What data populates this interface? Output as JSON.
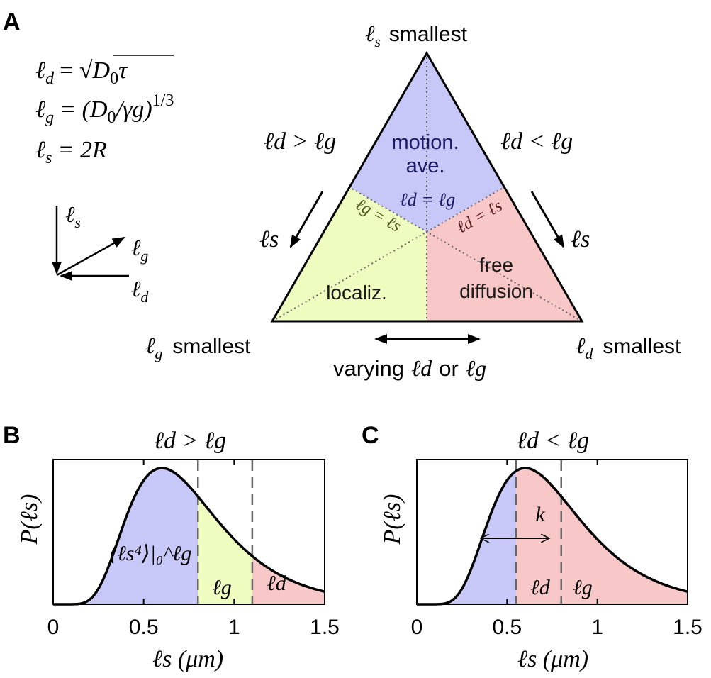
{
  "panelA": {
    "label": "A",
    "definitions": {
      "ld_lhs": "ℓ",
      "ld_sub": "d",
      "ld_rhs_prefix": "= ",
      "ld_rhs_D": "D",
      "ld_rhs_0": "0",
      "ld_rhs_tau": "τ",
      "lg_lhs": "ℓ",
      "lg_sub": "g",
      "lg_rhs": "= (D",
      "lg_rhs_0": "0",
      "lg_rhs_tail": "/γg)",
      "lg_exp": "1/3",
      "ls_lhs": "ℓ",
      "ls_sub": "s",
      "ls_rhs": "= 2R"
    },
    "axes": {
      "s": "s",
      "g": "g",
      "d": "d",
      "ell": "ℓ"
    },
    "triangle": {
      "top_label_sym": "ℓ",
      "top_label_sub": "s",
      "top_label_word": "smallest",
      "left_label_sym": "ℓ",
      "left_label_sub": "g",
      "left_label_word": "smallest",
      "right_label_sym": "ℓ",
      "right_label_sub": "d",
      "right_label_word": "smallest",
      "region_motion_1": "motion.",
      "region_motion_2": "ave.",
      "region_localiz": "localiz.",
      "region_free_1": "free",
      "region_free_2": "diffusion",
      "line_ld_eq_lg": "ℓd = ℓg",
      "line_lg_eq_ls": "ℓg = ℓs",
      "line_ld_eq_ls": "ℓd = ℓs",
      "left_cond": "ℓd > ℓg",
      "right_cond": "ℓd < ℓg",
      "left_arrow_label": "ℓs",
      "right_arrow_label": "ℓs",
      "bottom_varying": "varying",
      "bottom_or": "or",
      "bottom_ld": "ℓd",
      "bottom_lg": "ℓg"
    },
    "colors": {
      "motion": "#c8c8f8",
      "localiz": "#eefcc0",
      "free": "#f8c8c8"
    }
  },
  "panelB": {
    "label": "B",
    "title": "ℓd > ℓg",
    "ylabel": "P(ℓs)",
    "xlabel": "ℓs (μm)",
    "region_label_moment": "⟨ℓs⁴⟩|₀^ℓg",
    "region_label_g": "ℓg",
    "region_label_d": "ℓd",
    "ticks": [
      "0",
      "0.5",
      "1",
      "1.5"
    ]
  },
  "panelC": {
    "label": "C",
    "title": "ℓd < ℓg",
    "ylabel": "P(ℓs)",
    "xlabel": "ℓs (μm)",
    "k_label": "k",
    "region_label_d": "ℓd",
    "region_label_g": "ℓg",
    "ticks": [
      "0",
      "0.5",
      "1",
      "1.5"
    ]
  },
  "chart_data": [
    {
      "type": "area",
      "title": "ℓd > ℓg",
      "xlabel": "ℓs (μm)",
      "ylabel": "P(ℓs)",
      "xlim": [
        0,
        1.5
      ],
      "curve": "lognormal-like distribution peaking near 0.6",
      "peak_x": 0.6,
      "boundaries": [
        0.8,
        1.1
      ],
      "regions": [
        {
          "from": 0,
          "to": 0.8,
          "color": "#c8c8f8",
          "label": "⟨ℓs⁴⟩|₀^ℓg"
        },
        {
          "from": 0.8,
          "to": 1.1,
          "color": "#eefcc0",
          "label": "ℓg"
        },
        {
          "from": 1.1,
          "to": 1.5,
          "color": "#f8c8c8",
          "label": "ℓd"
        }
      ],
      "xticks": [
        0,
        0.5,
        1,
        1.5
      ]
    },
    {
      "type": "area",
      "title": "ℓd < ℓg",
      "xlabel": "ℓs (μm)",
      "ylabel": "P(ℓs)",
      "xlim": [
        0,
        1.5
      ],
      "curve": "lognormal-like distribution peaking near 0.6",
      "peak_x": 0.6,
      "boundaries": [
        0.55,
        0.8
      ],
      "regions": [
        {
          "from": 0,
          "to": 0.55,
          "color": "#c8c8f8"
        },
        {
          "from": 0.55,
          "to": 1.5,
          "color": "#f8c8c8"
        }
      ],
      "boundary_labels": [
        "ℓd",
        "ℓg"
      ],
      "annotation": "k",
      "xticks": [
        0,
        0.5,
        1,
        1.5
      ]
    }
  ]
}
